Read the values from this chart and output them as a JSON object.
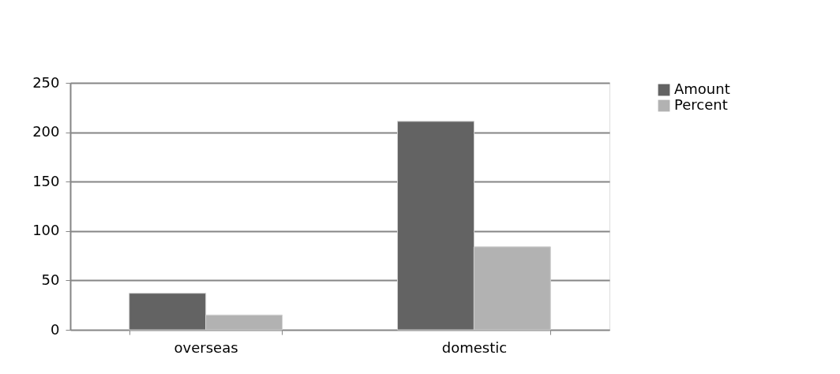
{
  "chart_data": {
    "type": "bar",
    "categories": [
      "overseas",
      "domestic"
    ],
    "series": [
      {
        "name": "Amount",
        "color": "#636363",
        "values": [
          37,
          211
        ]
      },
      {
        "name": "Percent",
        "color": "#b2b2b2",
        "values": [
          15,
          84
        ]
      }
    ],
    "ylim": [
      0,
      250
    ],
    "yticks": [
      0,
      50,
      100,
      150,
      200,
      250
    ],
    "grid": "y",
    "legend": "right"
  }
}
